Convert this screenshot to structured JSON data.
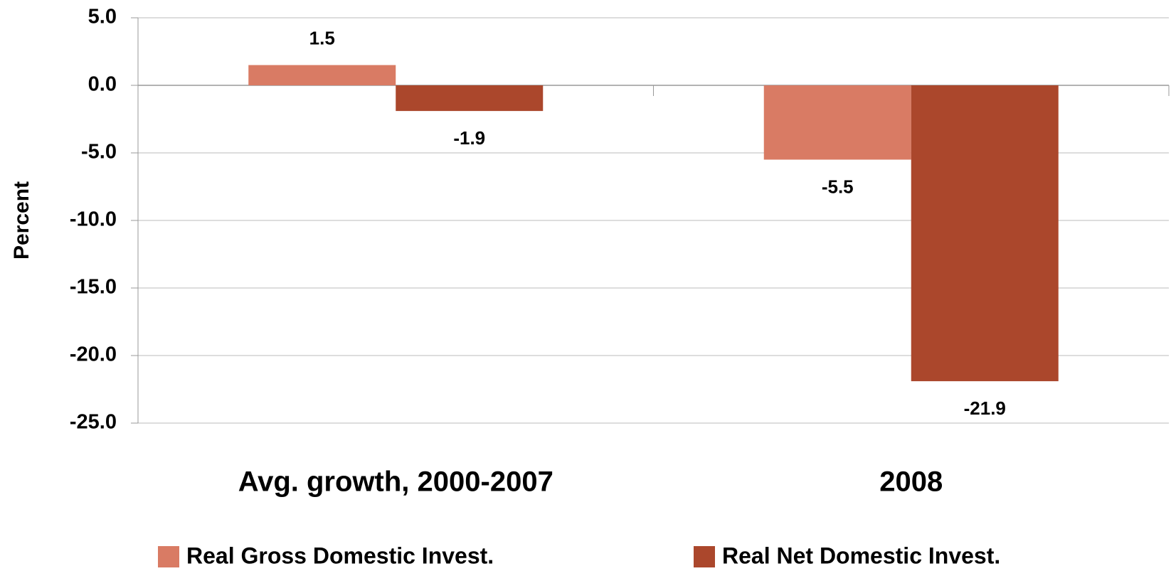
{
  "chart_data": {
    "type": "bar",
    "y_label": "Percent",
    "categories": [
      "Avg. growth, 2000-2007",
      "2008"
    ],
    "series": [
      {
        "name": "Real Gross Domestic Invest.",
        "color": "#d97b64",
        "values": [
          1.5,
          -5.5
        ]
      },
      {
        "name": "Real Net Domestic Invest.",
        "color": "#ab472c",
        "values": [
          -1.9,
          -21.9
        ]
      }
    ],
    "ylim": [
      -25,
      5
    ],
    "yticks": [
      {
        "value": 5,
        "label": "5.0"
      },
      {
        "value": 0,
        "label": "0.0"
      },
      {
        "value": -5,
        "label": "-5.0"
      },
      {
        "value": -10,
        "label": "-10.0"
      },
      {
        "value": -15,
        "label": "-15.0"
      },
      {
        "value": -20,
        "label": "-20.0"
      },
      {
        "value": -25,
        "label": "-25.0"
      }
    ],
    "grid": true
  }
}
